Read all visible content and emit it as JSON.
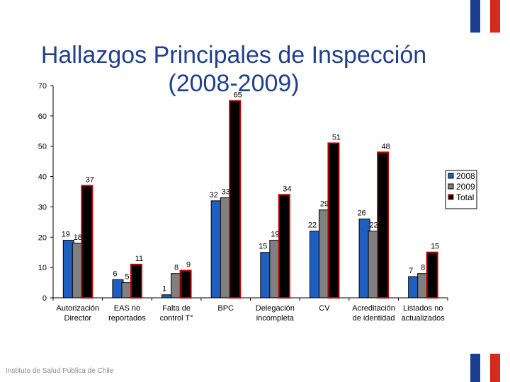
{
  "title": "Hallazgos Principales de Inspección (2008-2009)",
  "footer": "Instituto de Salud Pública de Chile",
  "colors": {
    "title": "#1f3f8f",
    "series_2008": "#1f5fbf",
    "series_2009": "#808080",
    "series_total": "#000000",
    "total_border": "#c00000",
    "flag_blue": "#1b3f8f",
    "flag_white": "#ffffff",
    "flag_red": "#d52b1e"
  },
  "chart_data": {
    "type": "bar",
    "categories": [
      [
        "Autorización",
        "Director"
      ],
      [
        "EAS no",
        "reportados"
      ],
      [
        "Falta de",
        "control T°"
      ],
      [
        "BPC"
      ],
      [
        "Delegación",
        "incompleta"
      ],
      [
        "CV"
      ],
      [
        "Acreditación",
        "de identidad"
      ],
      [
        "Listados no",
        "actualizados"
      ]
    ],
    "series": [
      {
        "name": "2008",
        "values": [
          19,
          6,
          1,
          32,
          15,
          22,
          26,
          7
        ]
      },
      {
        "name": "2009",
        "values": [
          18,
          5,
          8,
          33,
          19,
          29,
          22,
          8
        ]
      },
      {
        "name": "Total",
        "values": [
          37,
          11,
          9,
          65,
          34,
          51,
          48,
          15
        ]
      }
    ],
    "ylim": [
      0,
      70
    ],
    "yticks": [
      0,
      10,
      20,
      30,
      40,
      50,
      60,
      70
    ],
    "grid": false,
    "legend_position": "right"
  }
}
